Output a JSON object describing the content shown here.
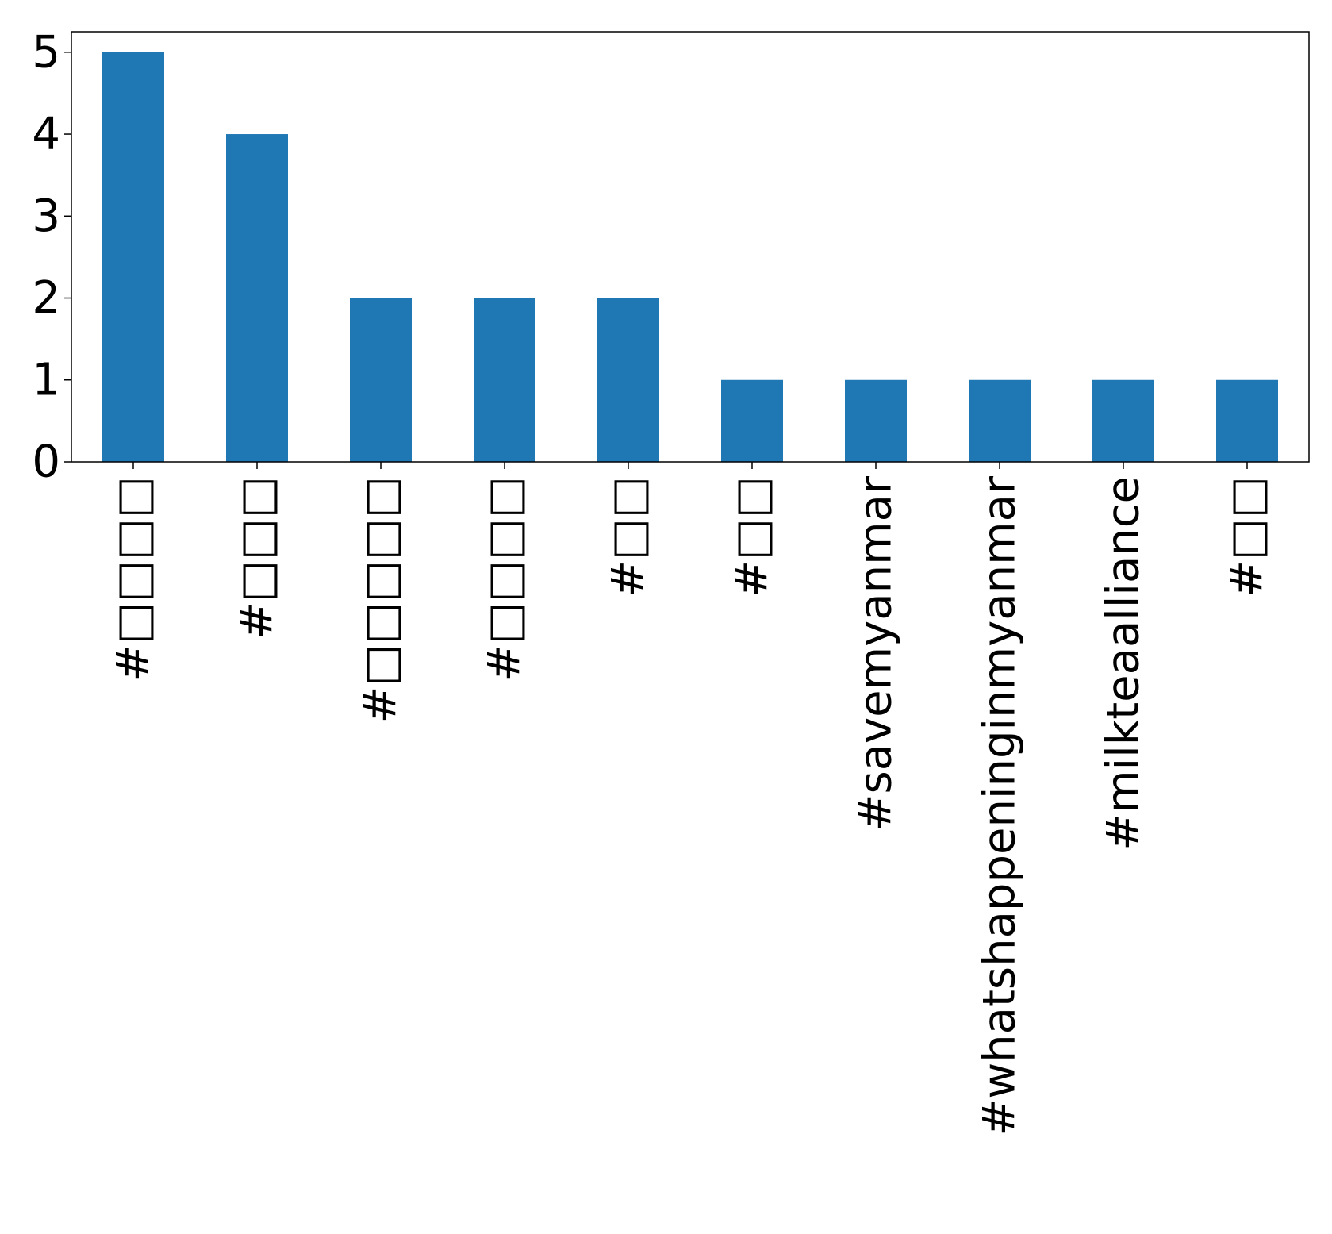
{
  "chart_data": {
    "type": "bar",
    "categories": [
      "#□□□□",
      "#□□□",
      "#□□□□□",
      "#□□□□",
      "#□□",
      "#□□",
      "#savemyanmar",
      "#whatshappeninginmyanmar",
      "#milkteaalliance",
      "#□□"
    ],
    "values": [
      5,
      4,
      2,
      2,
      2,
      1,
      1,
      1,
      1,
      1
    ],
    "title": "",
    "xlabel": "",
    "ylabel": "",
    "ylim": [
      0,
      5.25
    ],
    "yticks": [
      0,
      1,
      2,
      3,
      4,
      5
    ],
    "grid": false,
    "legend": "none",
    "bar_color": "#1f77b4"
  }
}
